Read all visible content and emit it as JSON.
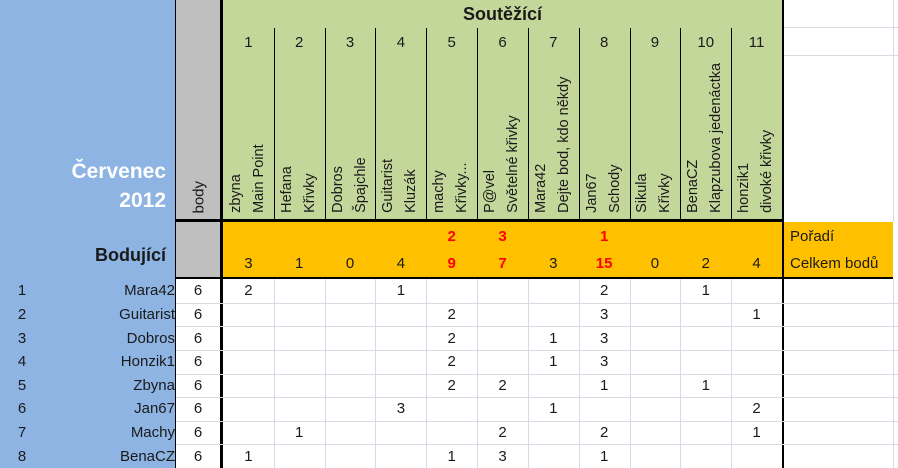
{
  "app": {
    "title_month": "Červenec",
    "title_year": "2012"
  },
  "labels": {
    "competitors": "Soutěžící",
    "scorers": "Bodující",
    "points": "body",
    "ranking": "Pořadí",
    "total_points": "Celkem bodů"
  },
  "colors": {
    "panel_blue": "#8DB4E2",
    "header_green": "#C4D79B",
    "accent_orange": "#FFC000",
    "points_gray": "#BFBFBF",
    "highlight_red": "#FF0000",
    "gridline": "#D6DCE4"
  },
  "competitors": [
    {
      "num": "1",
      "name": "zbyna",
      "entry": "Main Point",
      "rank": "",
      "total": "3",
      "highlight": false
    },
    {
      "num": "2",
      "name": "Hefana",
      "entry": "Křivky",
      "rank": "",
      "total": "1",
      "highlight": false
    },
    {
      "num": "3",
      "name": "Dobros",
      "entry": "Špajchle",
      "rank": "",
      "total": "0",
      "highlight": false
    },
    {
      "num": "4",
      "name": "Guitarist",
      "entry": "Kluzák",
      "rank": "",
      "total": "4",
      "highlight": false
    },
    {
      "num": "5",
      "name": "machy",
      "entry": "Křivky...",
      "rank": "2",
      "total": "9",
      "highlight": true
    },
    {
      "num": "6",
      "name": "P@vel",
      "entry": "Světelné křivky",
      "rank": "3",
      "total": "7",
      "highlight": true
    },
    {
      "num": "7",
      "name": "Mara42",
      "entry": "Dejte bod, kdo někdy",
      "rank": "",
      "total": "3",
      "highlight": false
    },
    {
      "num": "8",
      "name": "Jan67",
      "entry": "Schody",
      "rank": "1",
      "total": "15",
      "highlight": true
    },
    {
      "num": "9",
      "name": "Sikula",
      "entry": "Křivky",
      "rank": "",
      "total": "0",
      "highlight": false
    },
    {
      "num": "10",
      "name": "BenaCZ",
      "entry": "Klapzubova jedenáctka",
      "rank": "",
      "total": "2",
      "highlight": false
    },
    {
      "num": "11",
      "name": "honzik1",
      "entry": "divoké křivky",
      "rank": "",
      "total": "4",
      "highlight": false
    }
  ],
  "scorers": [
    {
      "num": "1",
      "name": "Mara42",
      "points": "6",
      "votes": [
        "2",
        "",
        "",
        "1",
        "",
        "",
        "",
        "2",
        "",
        "1",
        ""
      ]
    },
    {
      "num": "2",
      "name": "Guitarist",
      "points": "6",
      "votes": [
        "",
        "",
        "",
        "",
        "2",
        "",
        "",
        "3",
        "",
        "",
        "1"
      ]
    },
    {
      "num": "3",
      "name": "Dobros",
      "points": "6",
      "votes": [
        "",
        "",
        "",
        "",
        "2",
        "",
        "1",
        "3",
        "",
        "",
        ""
      ]
    },
    {
      "num": "4",
      "name": "Honzik1",
      "points": "6",
      "votes": [
        "",
        "",
        "",
        "",
        "2",
        "",
        "1",
        "3",
        "",
        "",
        ""
      ]
    },
    {
      "num": "5",
      "name": "Zbyna",
      "points": "6",
      "votes": [
        "",
        "",
        "",
        "",
        "2",
        "2",
        "",
        "1",
        "",
        "1",
        ""
      ]
    },
    {
      "num": "6",
      "name": "Jan67",
      "points": "6",
      "votes": [
        "",
        "",
        "",
        "3",
        "",
        "",
        "1",
        "",
        "",
        "",
        "2"
      ]
    },
    {
      "num": "7",
      "name": "Machy",
      "points": "6",
      "votes": [
        "",
        "1",
        "",
        "",
        "",
        "2",
        "",
        "2",
        "",
        "",
        "1"
      ]
    },
    {
      "num": "8",
      "name": "BenaCZ",
      "points": "6",
      "votes": [
        "1",
        "",
        "",
        "",
        "1",
        "3",
        "",
        "1",
        "",
        "",
        ""
      ]
    }
  ]
}
